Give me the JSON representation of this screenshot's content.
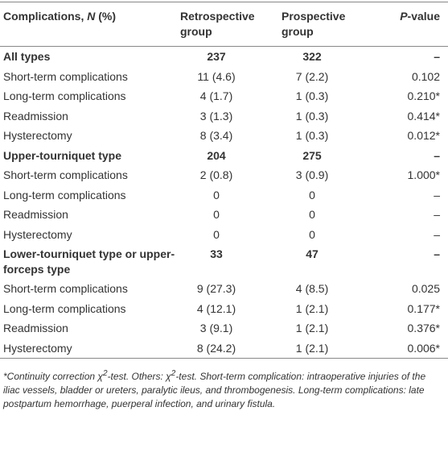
{
  "table": {
    "header": [
      [
        "Complications, ",
        "N",
        " (%)"
      ],
      "Retrospective group",
      "Prospective group",
      [
        "P",
        "-value"
      ]
    ],
    "rows": [
      {
        "cells": [
          "All types",
          "237",
          "322",
          "–"
        ],
        "bold": true
      },
      {
        "cells": [
          "Short-term complications",
          "11 (4.6)",
          "7 (2.2)",
          "0.102"
        ],
        "bold": false
      },
      {
        "cells": [
          "Long-term complications",
          "4 (1.7)",
          "1 (0.3)",
          "0.210*"
        ],
        "bold": false
      },
      {
        "cells": [
          "Readmission",
          "3 (1.3)",
          "1 (0.3)",
          "0.414*"
        ],
        "bold": false
      },
      {
        "cells": [
          "Hysterectomy",
          "8 (3.4)",
          "1 (0.3)",
          "0.012*"
        ],
        "bold": false
      },
      {
        "cells": [
          "Upper-tourniquet type",
          "204",
          "275",
          "–"
        ],
        "bold": true
      },
      {
        "cells": [
          "Short-term complications",
          "2 (0.8)",
          "3 (0.9)",
          "1.000*"
        ],
        "bold": false
      },
      {
        "cells": [
          "Long-term complications",
          "0",
          "0",
          "–"
        ],
        "bold": false
      },
      {
        "cells": [
          "Readmission",
          "0",
          "0",
          "–"
        ],
        "bold": false
      },
      {
        "cells": [
          "Hysterectomy",
          "0",
          "0",
          "–"
        ],
        "bold": false
      },
      {
        "cells": [
          "Lower-tourniquet type or upper-forceps type",
          "33",
          "47",
          "–"
        ],
        "bold": true
      },
      {
        "cells": [
          "Short-term complications",
          "9 (27.3)",
          "4 (8.5)",
          "0.025"
        ],
        "bold": false
      },
      {
        "cells": [
          "Long-term complications",
          "4 (12.1)",
          "1 (2.1)",
          "0.177*"
        ],
        "bold": false
      },
      {
        "cells": [
          "Readmission",
          "3 (9.1)",
          "1 (2.1)",
          "0.376*"
        ],
        "bold": false
      },
      {
        "cells": [
          "Hysterectomy",
          "8 (24.2)",
          "1 (2.1)",
          "0.006*"
        ],
        "bold": false
      }
    ],
    "footnote": [
      "*Continuity correction χ",
      "2",
      "-test. Others: χ",
      "2",
      "-test. Short-term complication: intraoperative injuries of the iliac vessels, bladder or ureters, paralytic ileus, and thrombogenesis. Long-term complications: late postpartum hemorrhage, puerperal infection, and urinary fistula."
    ]
  }
}
